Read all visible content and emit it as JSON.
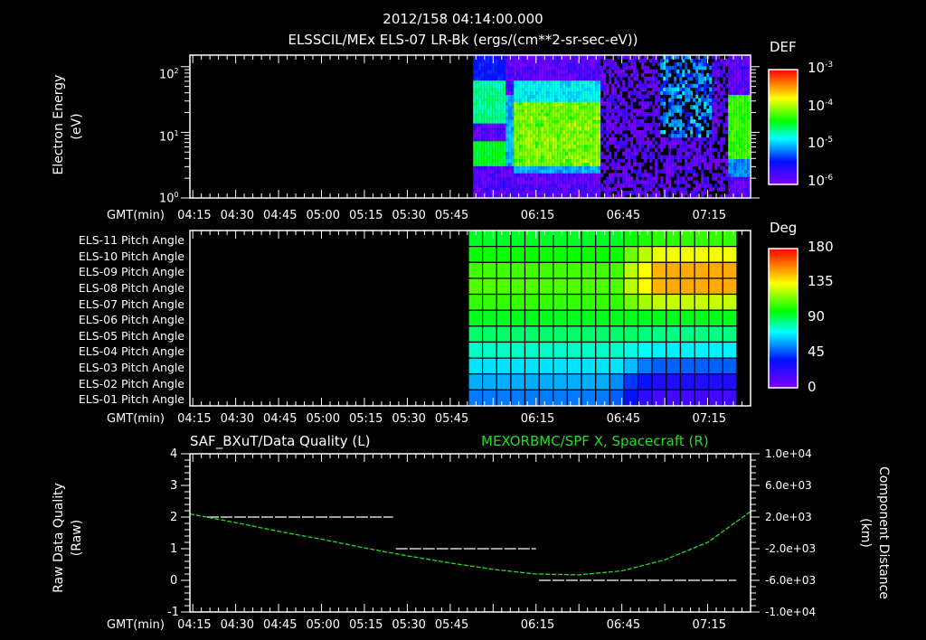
{
  "header": {
    "timestamp": "2012/158 04:14:00.000",
    "title": "ELSSCIL/MEx ELS-07 LR-Bk  (ergs/(cm**2-sr-sec-eV))"
  },
  "panels": {
    "spectrogram": {
      "ylabel": "Electron Energy",
      "yunit": "(eV)",
      "yticks": [
        {
          "base": "10",
          "exp": "2"
        },
        {
          "base": "10",
          "exp": "1"
        },
        {
          "base": "10",
          "exp": "0"
        }
      ],
      "colorbar_title": "DEF",
      "colorbar_ticks": [
        {
          "base": "10",
          "exp": "-3"
        },
        {
          "base": "10",
          "exp": "-4"
        },
        {
          "base": "10",
          "exp": "-5"
        },
        {
          "base": "10",
          "exp": "-6"
        }
      ],
      "xaxis_label": "GMT(min)"
    },
    "pitch": {
      "row_labels": [
        "ELS-11 Pitch Angle",
        "ELS-10 Pitch Angle",
        "ELS-09 Pitch Angle",
        "ELS-08 Pitch Angle",
        "ELS-07 Pitch Angle",
        "ELS-06 Pitch Angle",
        "ELS-05 Pitch Angle",
        "ELS-04 Pitch Angle",
        "ELS-03 Pitch Angle",
        "ELS-02 Pitch Angle",
        "ELS-01 Pitch Angle"
      ],
      "colorbar_title": "Deg",
      "colorbar_ticks": [
        "180",
        "135",
        "90",
        "45",
        "0"
      ],
      "xaxis_label": "GMT(min)"
    },
    "lineplot": {
      "left_title": "SAF_BXuT/Data Quality (L)",
      "right_title": "MEXORBMC/SPF X, Spacecraft (R)",
      "ylabel_left": "Raw Data Quality",
      "yunit_left": "(Raw)",
      "ylabel_right": "Component Distance",
      "yunit_right": "(km)",
      "yticks_left": [
        "4",
        "3",
        "2",
        "1",
        "0",
        "-1"
      ],
      "yticks_right": [
        "1.0e+04",
        "6.0e+03",
        "2.0e+03",
        "-2.0e+03",
        "-6.0e+03",
        "-1.0e+04"
      ],
      "xaxis_label": "GMT(min)"
    }
  },
  "xaxis_ticks": [
    "04:15",
    "04:30",
    "04:45",
    "05:00",
    "05:15",
    "05:30",
    "05:45",
    "06:15",
    "06:45",
    "07:15"
  ],
  "colors": {
    "background": "#000000",
    "axes": "#ffffff",
    "right_series": "#22dd22",
    "left_series": "#ffffff"
  },
  "chart_data": [
    {
      "type": "heatmap",
      "title": "ELSSCIL/MEx ELS-07 LR-Bk (ergs/(cm**2-sr-sec-eV))",
      "xlabel": "GMT(min)",
      "ylabel": "Electron Energy (eV)",
      "yscale": "log",
      "ylim": [
        1,
        150
      ],
      "xlim": [
        "04:14",
        "07:30"
      ],
      "data_start": "05:53",
      "colorbar": {
        "label": "DEF",
        "scale": "log",
        "range": [
          1e-06,
          0.001
        ]
      },
      "regions": [
        {
          "x": [
            "05:53",
            "06:04"
          ],
          "desc": "two bands ~3-7 eV and ~15-60 eV",
          "level": 3e-05
        },
        {
          "x": [
            "06:07",
            "06:37"
          ],
          "desc": "intense band 3-40 eV",
          "level": 0.0001
        },
        {
          "x": [
            "06:37",
            "07:21"
          ],
          "desc": "sparse low-level flux",
          "level": 2e-06
        },
        {
          "x": [
            "07:22",
            "07:28"
          ],
          "desc": "band 4-40 eV",
          "level": 6e-05
        }
      ]
    },
    {
      "type": "heatmap",
      "title": "ELS Pitch Angles",
      "xlabel": "GMT(min)",
      "rows": [
        "ELS-11",
        "ELS-10",
        "ELS-09",
        "ELS-08",
        "ELS-07",
        "ELS-06",
        "ELS-05",
        "ELS-04",
        "ELS-03",
        "ELS-02",
        "ELS-01"
      ],
      "colorbar": {
        "label": "Deg",
        "range": [
          0,
          180
        ]
      },
      "columns": 19,
      "xlim_data": [
        "05:53",
        "07:27"
      ],
      "values": [
        [
          95,
          95,
          95,
          95,
          95,
          95,
          95,
          95,
          95,
          95,
          95,
          100,
          103,
          105,
          105,
          106,
          106,
          106,
          106
        ],
        [
          100,
          100,
          100,
          100,
          100,
          100,
          100,
          100,
          100,
          100,
          100,
          115,
          125,
          132,
          133,
          133,
          133,
          133,
          133
        ],
        [
          108,
          108,
          108,
          108,
          108,
          108,
          108,
          108,
          108,
          108,
          108,
          125,
          135,
          148,
          150,
          150,
          150,
          150,
          150
        ],
        [
          110,
          110,
          110,
          110,
          110,
          110,
          110,
          110,
          110,
          110,
          110,
          125,
          135,
          148,
          150,
          150,
          150,
          150,
          150
        ],
        [
          106,
          106,
          106,
          106,
          106,
          106,
          106,
          106,
          106,
          106,
          106,
          115,
          122,
          126,
          127,
          127,
          127,
          127,
          127
        ],
        [
          96,
          96,
          96,
          96,
          96,
          96,
          96,
          96,
          96,
          96,
          96,
          96,
          96,
          96,
          96,
          96,
          96,
          96,
          96
        ],
        [
          88,
          88,
          88,
          88,
          88,
          88,
          88,
          88,
          88,
          88,
          88,
          88,
          86,
          85,
          85,
          85,
          85,
          85,
          85
        ],
        [
          78,
          78,
          78,
          78,
          78,
          78,
          78,
          78,
          78,
          78,
          78,
          75,
          72,
          70,
          70,
          70,
          70,
          70,
          70
        ],
        [
          68,
          68,
          68,
          68,
          68,
          68,
          68,
          68,
          68,
          68,
          68,
          62,
          52,
          48,
          48,
          48,
          48,
          48,
          48
        ],
        [
          60,
          60,
          60,
          60,
          60,
          60,
          60,
          60,
          60,
          60,
          55,
          42,
          32,
          27,
          27,
          27,
          27,
          27,
          27
        ],
        [
          52,
          52,
          52,
          52,
          52,
          52,
          52,
          52,
          52,
          52,
          48,
          35,
          22,
          17,
          17,
          17,
          17,
          17,
          17
        ]
      ]
    },
    {
      "type": "line",
      "title": "SAF_BXuT/Data Quality (L) & MEXORBMC/SPF X, Spacecraft (R)",
      "xlabel": "GMT(min)",
      "ylabel": "Raw Data Quality (Raw)",
      "ylabel_right": "Component Distance (km)",
      "ylim": [
        -1,
        4
      ],
      "ylim_right": [
        -10000,
        10000
      ],
      "series": [
        {
          "name": "SAF_BXuT/Data Quality (L)",
          "axis": "left",
          "style": "dashed",
          "x": [
            "04:20",
            "05:25",
            "05:26",
            "06:15",
            "06:16",
            "07:25"
          ],
          "y": [
            2,
            2,
            1,
            1,
            0,
            0
          ]
        },
        {
          "name": "MEXORBMC/SPF X, Spacecraft (R)",
          "axis": "right",
          "style": "dotted",
          "x": [
            "04:14",
            "04:30",
            "04:45",
            "05:00",
            "05:15",
            "05:30",
            "05:45",
            "06:00",
            "06:15",
            "06:30",
            "06:45",
            "07:00",
            "07:15",
            "07:30"
          ],
          "y": [
            2400,
            1300,
            200,
            -800,
            -1900,
            -2900,
            -3800,
            -4600,
            -5200,
            -5300,
            -4800,
            -3400,
            -1200,
            2700
          ]
        }
      ]
    }
  ]
}
